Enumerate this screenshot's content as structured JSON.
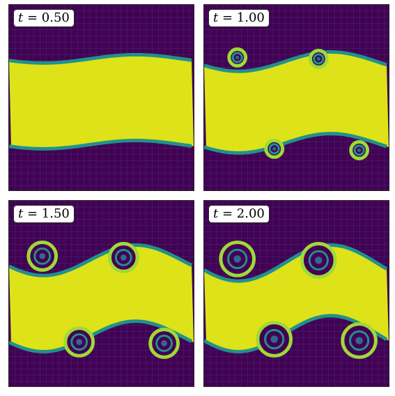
{
  "panels": [
    {
      "id": "p1",
      "symbol": "t",
      "equals": " = ",
      "value": "0.50",
      "stage": 0
    },
    {
      "id": "p2",
      "symbol": "t",
      "equals": " = ",
      "value": "1.00",
      "stage": 1
    },
    {
      "id": "p3",
      "symbol": "t",
      "equals": " = ",
      "value": "1.50",
      "stage": 2
    },
    {
      "id": "p4",
      "symbol": "t",
      "equals": " = ",
      "value": "2.00",
      "stage": 3
    }
  ],
  "colors": {
    "background_purple": "#440154",
    "mesh_purple": "#3b2a6e",
    "band_yellow": "#dde318",
    "band_green": "#9fd938",
    "edge_teal": "#21918c",
    "edge_blue": "#31688e"
  }
}
